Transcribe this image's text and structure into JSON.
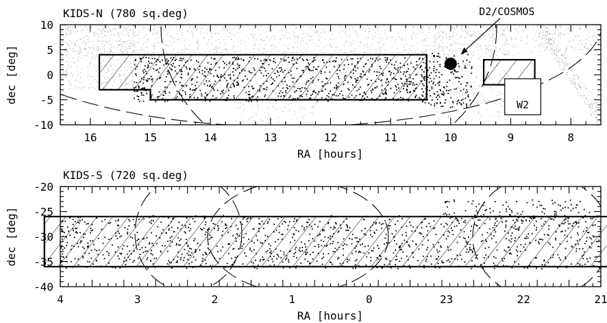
{
  "chart_data": [
    {
      "type": "scatter",
      "title": "KIDS-N (780 sq.deg)",
      "xlabel": "RA [hours]",
      "ylabel": "dec [deg]",
      "xlim": [
        16.5,
        7.5
      ],
      "ylim": [
        -10,
        10
      ],
      "xticks": [
        16,
        15,
        14,
        13,
        12,
        11,
        10,
        9,
        8
      ],
      "yticks": [
        10,
        5,
        0,
        -5,
        -10
      ],
      "grid": false,
      "footprint": [
        [
          15.85,
          4
        ],
        [
          10.4,
          4
        ],
        [
          10.4,
          -5
        ],
        [
          15.0,
          -5
        ],
        [
          15.0,
          -3
        ],
        [
          15.85,
          -3
        ]
      ],
      "regions": [
        {
          "name": "D2/COSMOS",
          "ra": 10.0,
          "dec": 2.2,
          "kind": "filled-circle"
        },
        {
          "name": "W2",
          "ra_min": 8.6,
          "ra_max": 9.45,
          "dec_min": -2,
          "dec_max": 3,
          "kind": "hatched-box"
        },
        {
          "name": "",
          "ra_min": 8.5,
          "ra_max": 9.1,
          "dec_min": -8,
          "dec_max": -0.8,
          "kind": "outline-box"
        }
      ],
      "labels": {
        "cosmos": "D2/COSMOS",
        "w2": "W2"
      }
    },
    {
      "type": "scatter",
      "title": "KIDS-S (720 sq.deg)",
      "xlabel": "RA [hours]",
      "ylabel": "dec [deg]",
      "xlim": [
        4,
        21
      ],
      "ylim": [
        -40,
        -20
      ],
      "xtick_labels": [
        "4",
        "3",
        "2",
        "1",
        "0",
        "23",
        "22",
        "21"
      ],
      "yticks": [
        -20,
        -25,
        -30,
        -35,
        -40
      ],
      "grid": false,
      "footprint": [
        [
          3.5,
          -26
        ],
        [
          22.0,
          -26
        ],
        [
          22.0,
          -36
        ],
        [
          3.5,
          -36
        ]
      ]
    }
  ]
}
